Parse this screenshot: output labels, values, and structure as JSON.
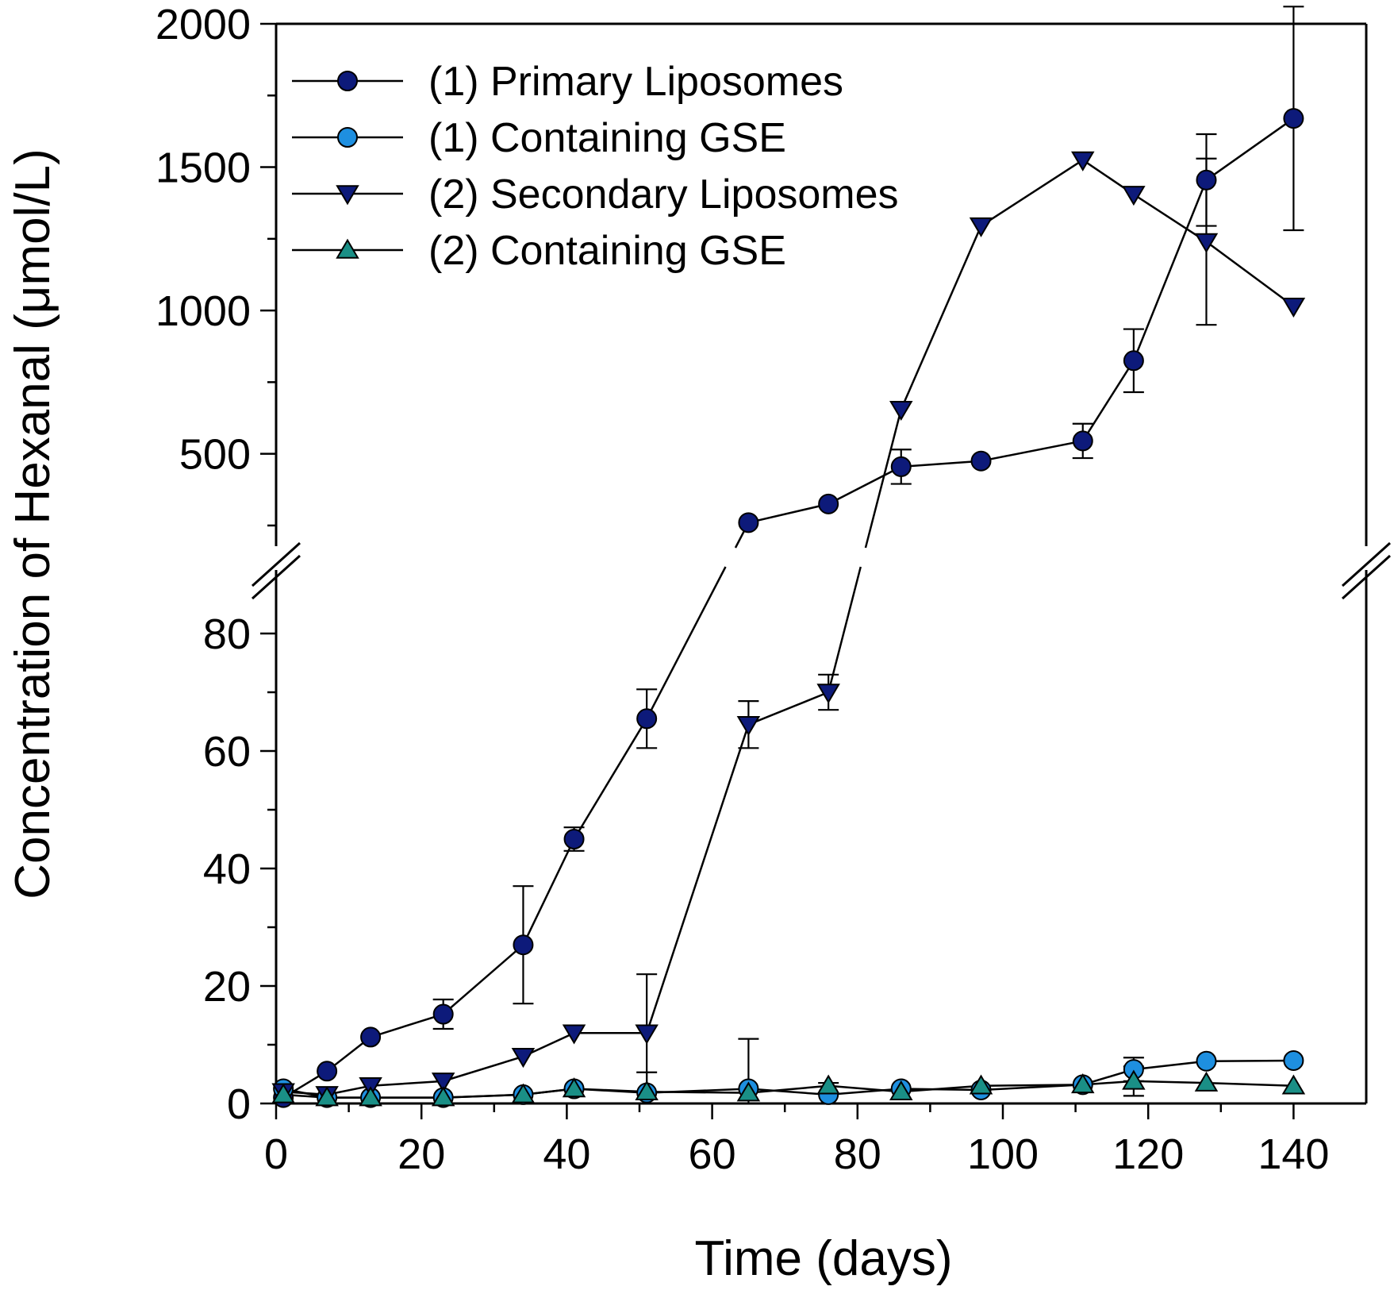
{
  "chart_data": {
    "type": "line",
    "title": "",
    "xlabel": "Time (days)",
    "ylabel": "Concentration of Hexanal (μmol/L)",
    "xlim": [
      0,
      150
    ],
    "x_ticks": [
      0,
      20,
      40,
      60,
      80,
      100,
      120,
      140
    ],
    "y_axis_break": true,
    "ylim_lower": [
      0,
      90
    ],
    "y_ticks_lower": [
      0,
      20,
      40,
      60,
      80
    ],
    "ylim_upper": [
      200,
      2000
    ],
    "y_ticks_upper": [
      500,
      1000,
      1500,
      2000
    ],
    "legend_position": "top-left",
    "series": [
      {
        "name": "(1) Primary Liposomes",
        "marker": "circle",
        "color": "#0d1a7a",
        "points": [
          {
            "x": 1,
            "y": 1,
            "err": 0
          },
          {
            "x": 7,
            "y": 5.5,
            "err": 0
          },
          {
            "x": 13,
            "y": 11.3,
            "err": 0
          },
          {
            "x": 23,
            "y": 15.2,
            "err": 2.5
          },
          {
            "x": 34,
            "y": 27,
            "err": 10
          },
          {
            "x": 41,
            "y": 45,
            "err": 2
          },
          {
            "x": 51,
            "y": 65.5,
            "err": 5
          },
          {
            "x": 65,
            "y": 260,
            "err": 0
          },
          {
            "x": 76,
            "y": 325,
            "err": 0
          },
          {
            "x": 86,
            "y": 455,
            "err": 60
          },
          {
            "x": 97,
            "y": 475,
            "err": 0
          },
          {
            "x": 111,
            "y": 545,
            "err": 60
          },
          {
            "x": 118,
            "y": 825,
            "err": 110
          },
          {
            "x": 128,
            "y": 1455,
            "err": 160
          },
          {
            "x": 140,
            "y": 1670,
            "err": 390
          }
        ]
      },
      {
        "name": "(1) Containing GSE",
        "marker": "circle",
        "color": "#1e8fe0",
        "points": [
          {
            "x": 1,
            "y": 2.5,
            "err": 0
          },
          {
            "x": 7,
            "y": 1,
            "err": 0
          },
          {
            "x": 13,
            "y": 1,
            "err": 0
          },
          {
            "x": 23,
            "y": 1,
            "err": 0
          },
          {
            "x": 34,
            "y": 1.5,
            "err": 0
          },
          {
            "x": 41,
            "y": 2.5,
            "err": 0
          },
          {
            "x": 51,
            "y": 1.8,
            "err": 3.5
          },
          {
            "x": 65,
            "y": 2.5,
            "err": 8.5
          },
          {
            "x": 76,
            "y": 1.5,
            "err": 2
          },
          {
            "x": 86,
            "y": 2.5,
            "err": 0
          },
          {
            "x": 97,
            "y": 2.3,
            "err": 0
          },
          {
            "x": 111,
            "y": 3.2,
            "err": 0
          },
          {
            "x": 118,
            "y": 5.8,
            "err": 2
          },
          {
            "x": 128,
            "y": 7.2,
            "err": 0
          },
          {
            "x": 140,
            "y": 7.3,
            "err": 0
          }
        ]
      },
      {
        "name": "(2) Secondary Liposomes",
        "marker": "triangle-down",
        "color": "#0d1a7a",
        "points": [
          {
            "x": 1,
            "y": 2,
            "err": 0
          },
          {
            "x": 7,
            "y": 1.5,
            "err": 0
          },
          {
            "x": 13,
            "y": 3,
            "err": 0
          },
          {
            "x": 23,
            "y": 3.8,
            "err": 0
          },
          {
            "x": 34,
            "y": 8,
            "err": 0
          },
          {
            "x": 41,
            "y": 12,
            "err": 0
          },
          {
            "x": 51,
            "y": 12,
            "err": 10
          },
          {
            "x": 65,
            "y": 64.5,
            "err": 4
          },
          {
            "x": 76,
            "y": 70,
            "err": 3
          },
          {
            "x": 86,
            "y": 655,
            "err": 0
          },
          {
            "x": 97,
            "y": 1295,
            "err": 0
          },
          {
            "x": 111,
            "y": 1525,
            "err": 0
          },
          {
            "x": 118,
            "y": 1405,
            "err": 0
          },
          {
            "x": 128,
            "y": 1240,
            "err": 290
          },
          {
            "x": 140,
            "y": 1015,
            "err": 0
          }
        ]
      },
      {
        "name": "(2) Containing GSE",
        "marker": "triangle-up",
        "color": "#1a8f86",
        "points": [
          {
            "x": 1,
            "y": 1.5,
            "err": 0
          },
          {
            "x": 7,
            "y": 1,
            "err": 0
          },
          {
            "x": 13,
            "y": 1,
            "err": 0
          },
          {
            "x": 23,
            "y": 1,
            "err": 0
          },
          {
            "x": 34,
            "y": 1.5,
            "err": 0
          },
          {
            "x": 41,
            "y": 2.5,
            "err": 0
          },
          {
            "x": 51,
            "y": 2,
            "err": 0
          },
          {
            "x": 65,
            "y": 1.8,
            "err": 0
          },
          {
            "x": 76,
            "y": 3,
            "err": 0
          },
          {
            "x": 86,
            "y": 2,
            "err": 0
          },
          {
            "x": 97,
            "y": 3,
            "err": 0
          },
          {
            "x": 111,
            "y": 3.2,
            "err": 0
          },
          {
            "x": 118,
            "y": 3.8,
            "err": 2.5
          },
          {
            "x": 128,
            "y": 3.5,
            "err": 0
          },
          {
            "x": 140,
            "y": 3,
            "err": 0
          }
        ]
      }
    ]
  }
}
